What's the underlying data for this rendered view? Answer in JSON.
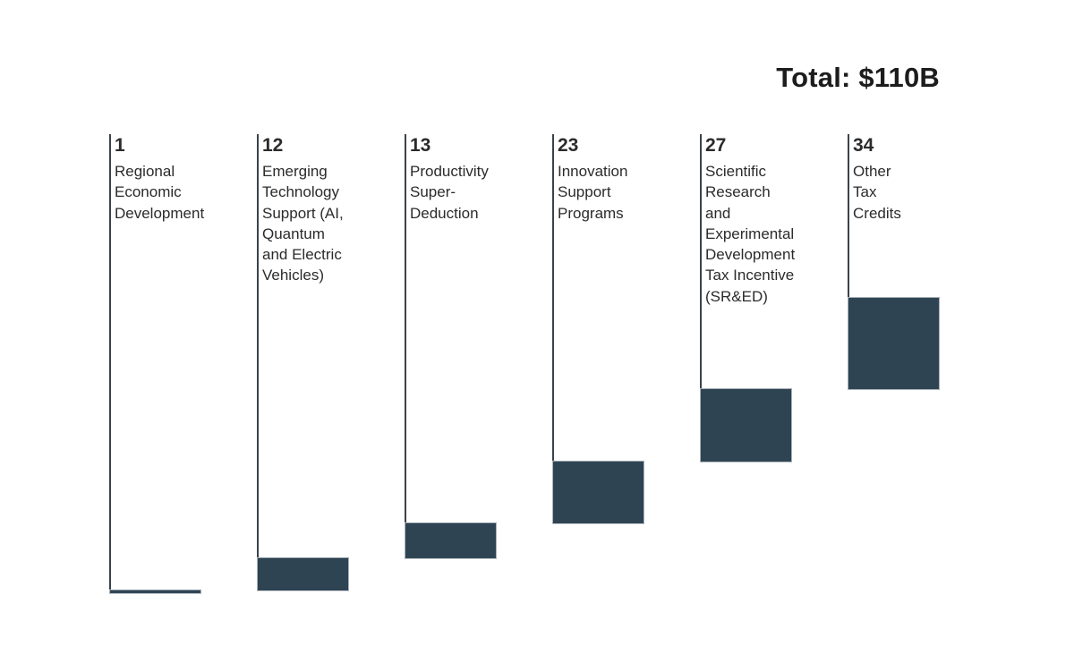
{
  "header": {
    "total_label": "Total: $110B"
  },
  "chart_data": {
    "type": "bar",
    "subtype": "waterfall",
    "title": "Total: $110B",
    "total": 110,
    "legend": "none",
    "grid": "off",
    "axes": "none (values printed above each category label)",
    "layout_hints": {
      "orientation": "vertical bars, cumulative cascade rising left to right",
      "connector": "thin vertical line from each label down to the top of its bar",
      "value_position": "bold number above each category label"
    },
    "items": [
      {
        "value": 1,
        "label": "Regional Economic Development",
        "label_lines": [
          "Regional",
          "Economic",
          "Development"
        ]
      },
      {
        "value": 12,
        "label": "Emerging Technology Support (AI, Quantum and Electric Vehicles)",
        "label_lines": [
          "Emerging",
          "Technology",
          "Support (AI,",
          "Quantum",
          "and Electric",
          "Vehicles)"
        ]
      },
      {
        "value": 13,
        "label": "Productivity Super-Deduction",
        "label_lines": [
          "Productivity",
          "Super-",
          "Deduction"
        ]
      },
      {
        "value": 23,
        "label": "Innovation Support Programs",
        "label_lines": [
          "Innovation",
          "Support",
          "Programs"
        ]
      },
      {
        "value": 27,
        "label": "Scientific Research and Experimental Development Tax Incentive (SR&ED)",
        "label_lines": [
          "Scientific",
          "Research",
          "and",
          "Experimental",
          "Development",
          "Tax Incentive",
          "(SR&ED)"
        ]
      },
      {
        "value": 34,
        "label": "Other Tax Credits",
        "label_lines": [
          "Other",
          "Tax",
          "Credits"
        ]
      }
    ],
    "colors": {
      "bar_fill": "#2f4453",
      "bar_border": "#aab3ba",
      "connector_line": "#3a424a",
      "text": "#2b2b2b",
      "title_text": "#1d1d1d",
      "background": "#ffffff"
    }
  }
}
